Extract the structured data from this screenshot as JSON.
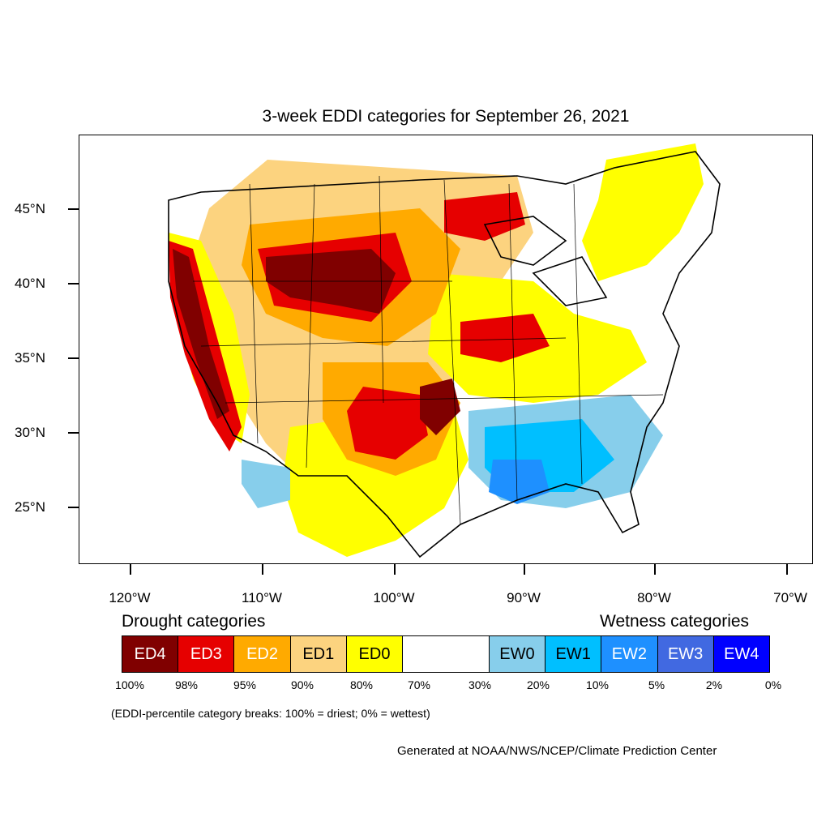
{
  "title": "3-week EDDI categories for September 26, 2021",
  "lat_labels": [
    "45°N",
    "40°N",
    "35°N",
    "30°N",
    "25°N"
  ],
  "lon_labels": [
    "120°W",
    "110°W",
    "100°W",
    "90°W",
    "80°W",
    "70°W"
  ],
  "drought_heading": "Drought categories",
  "wetness_heading": "Wetness categories",
  "categories": [
    {
      "label": "ED4",
      "color": "#800000",
      "text_color": "#ffffff"
    },
    {
      "label": "ED3",
      "color": "#e60000",
      "text_color": "#ffffff"
    },
    {
      "label": "ED2",
      "color": "#ffaa00",
      "text_color": "#ffffff"
    },
    {
      "label": "ED1",
      "color": "#fcd37f",
      "text_color": "#000000"
    },
    {
      "label": "ED0",
      "color": "#ffff00",
      "text_color": "#000000"
    },
    {
      "label": "",
      "color": "#ffffff",
      "text_color": "#000000"
    },
    {
      "label": "EW0",
      "color": "#87ceeb",
      "text_color": "#000000"
    },
    {
      "label": "EW1",
      "color": "#00bfff",
      "text_color": "#000000"
    },
    {
      "label": "EW2",
      "color": "#1e90ff",
      "text_color": "#ffffff"
    },
    {
      "label": "EW3",
      "color": "#4169e1",
      "text_color": "#ffffff"
    },
    {
      "label": "EW4",
      "color": "#0000ff",
      "text_color": "#ffffff"
    }
  ],
  "breaks": [
    "100%",
    "98%",
    "95%",
    "90%",
    "80%",
    "70%",
    "30%",
    "20%",
    "10%",
    "5%",
    "2%",
    "0%"
  ],
  "break_note": "(EDDI-percentile category breaks: 100% = driest; 0% = wettest)",
  "credit": "Generated at NOAA/NWS/NCEP/Climate Prediction Center"
}
